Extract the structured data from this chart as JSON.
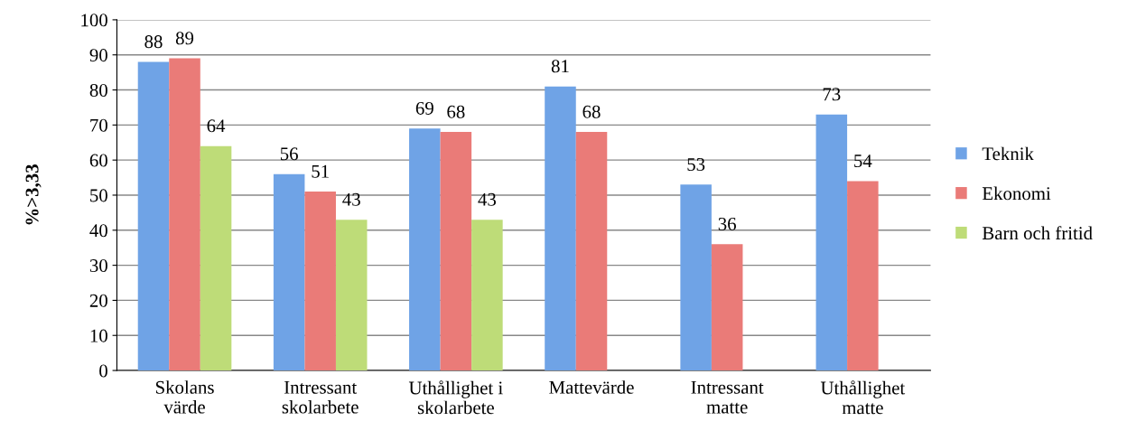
{
  "chart_data": {
    "type": "bar",
    "ylabel": "%>3,33",
    "categories": [
      "Skolans\nvärde",
      "Intressant\nskolarbete",
      "Uthållighet i\nskolarbete",
      "Mattevärde",
      "Intressant\nmatte",
      "Uthållighet\nmatte"
    ],
    "series": [
      {
        "name": "Teknik",
        "color": "#6fa3e6",
        "values": [
          88,
          56,
          69,
          81,
          53,
          73
        ]
      },
      {
        "name": "Ekonomi",
        "color": "#ea7b78",
        "values": [
          89,
          51,
          68,
          68,
          36,
          54
        ]
      },
      {
        "name": "Barn och fritid",
        "color": "#bedc78",
        "values": [
          64,
          43,
          43,
          null,
          null,
          null
        ]
      }
    ],
    "ylim": [
      0,
      100
    ],
    "yticks": [
      0,
      10,
      20,
      30,
      40,
      50,
      60,
      70,
      80,
      90,
      100
    ],
    "grid": "y",
    "legend": "right",
    "data_labels": true
  }
}
